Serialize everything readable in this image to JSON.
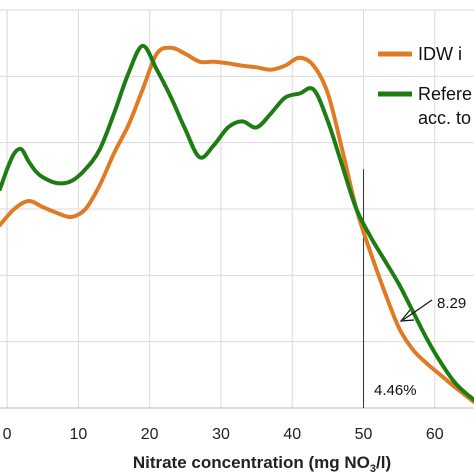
{
  "chart_data": {
    "type": "line",
    "xlabel_main": "Nitrate concentration (mg NO",
    "xlabel_sub": "3",
    "xlabel_tail": "/l)",
    "xlim": [
      -1,
      65.5
    ],
    "ylim": [
      0,
      1
    ],
    "x_ticks": [
      0,
      10,
      20,
      30,
      40,
      50,
      60
    ],
    "x_tick_labels": [
      "0",
      "10",
      "20",
      "30",
      "40",
      "50",
      "60"
    ],
    "grid": true,
    "legend_position": "top-right",
    "series": [
      {
        "name": "IDW i",
        "color": "#e07b24",
        "x": [
          -1,
          1,
          3,
          5,
          7,
          9,
          11,
          13,
          15,
          17,
          19,
          21,
          23,
          25,
          27,
          29,
          31,
          33,
          35,
          37,
          39,
          41,
          43,
          45,
          47,
          49,
          51,
          53,
          55,
          57,
          59,
          61,
          63,
          65.5
        ],
        "y": [
          0.46,
          0.5,
          0.52,
          0.505,
          0.49,
          0.48,
          0.5,
          0.56,
          0.64,
          0.71,
          0.8,
          0.89,
          0.905,
          0.89,
          0.87,
          0.87,
          0.866,
          0.86,
          0.856,
          0.85,
          0.86,
          0.88,
          0.86,
          0.79,
          0.65,
          0.5,
          0.39,
          0.29,
          0.2,
          0.145,
          0.11,
          0.08,
          0.05,
          0.015
        ]
      },
      {
        "name": "Refere acc. to",
        "color": "#1e7d12",
        "x": [
          -1,
          0,
          1,
          2,
          3,
          4,
          5,
          7,
          9,
          11,
          13,
          15,
          17,
          19,
          21,
          23,
          25,
          27,
          29,
          31,
          33,
          35,
          37,
          39,
          41,
          43,
          45,
          47,
          49,
          51,
          53,
          55,
          57,
          59,
          61,
          63,
          65.5
        ],
        "y": [
          0.55,
          0.6,
          0.64,
          0.65,
          0.62,
          0.595,
          0.58,
          0.565,
          0.57,
          0.6,
          0.65,
          0.74,
          0.84,
          0.91,
          0.85,
          0.78,
          0.7,
          0.63,
          0.66,
          0.705,
          0.72,
          0.705,
          0.74,
          0.78,
          0.79,
          0.8,
          0.72,
          0.61,
          0.5,
          0.43,
          0.37,
          0.31,
          0.24,
          0.17,
          0.11,
          0.06,
          0.02
        ]
      }
    ],
    "annotations": [
      {
        "text": "8.29",
        "x": 56.3,
        "y": 0.275
      },
      {
        "text": "4.46%",
        "x": 50.6,
        "y": 0.035
      }
    ],
    "vertical_marker_x": 50
  }
}
